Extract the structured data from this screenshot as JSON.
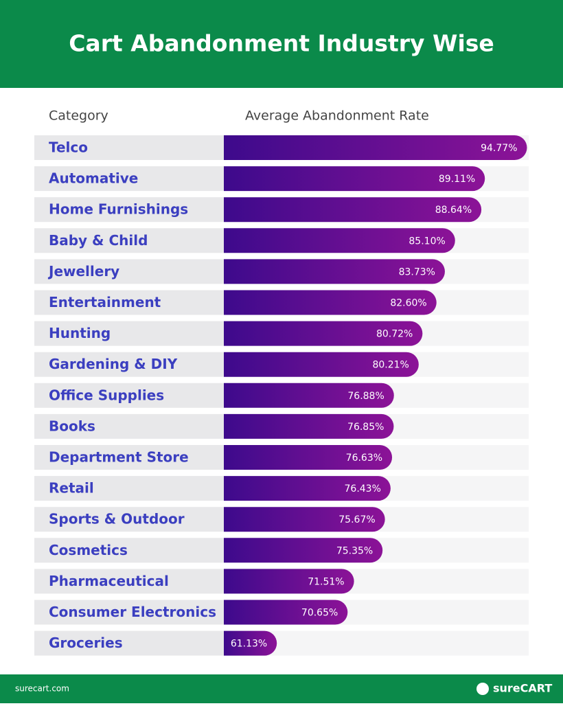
{
  "chart_data": {
    "type": "bar",
    "title": "Cart Abandonment Industry Wise",
    "category_header": "Category",
    "value_header": "Average Abandonment Rate",
    "categories": [
      "Telco",
      "Automative",
      "Home Furnishings",
      "Baby & Child",
      "Jewellery",
      "Entertainment",
      "Hunting",
      "Gardening & DIY",
      "Office Supplies",
      "Books",
      "Department Store",
      "Retail",
      "Sports & Outdoor",
      "Cosmetics",
      "Pharmaceutical",
      "Consumer Electronics",
      "Groceries"
    ],
    "values": [
      94.77,
      89.11,
      88.64,
      85.1,
      83.73,
      82.6,
      80.72,
      80.21,
      76.88,
      76.85,
      76.63,
      76.43,
      75.67,
      75.35,
      71.51,
      70.65,
      61.13
    ],
    "value_labels": [
      "94.77%",
      "89.11%",
      "88.64%",
      "85.10%",
      "83.73%",
      "82.60%",
      "80.72%",
      "80.21%",
      "76.88%",
      "76.85%",
      "76.63%",
      "76.43%",
      "75.67%",
      "75.35%",
      "71.51%",
      "70.65%",
      "61.13%"
    ],
    "xlim": [
      54,
      95
    ],
    "color": [
      "#3d0a8c",
      "#8c1397"
    ]
  },
  "footer": {
    "site": "surecart.com",
    "brand": "sureCART"
  }
}
